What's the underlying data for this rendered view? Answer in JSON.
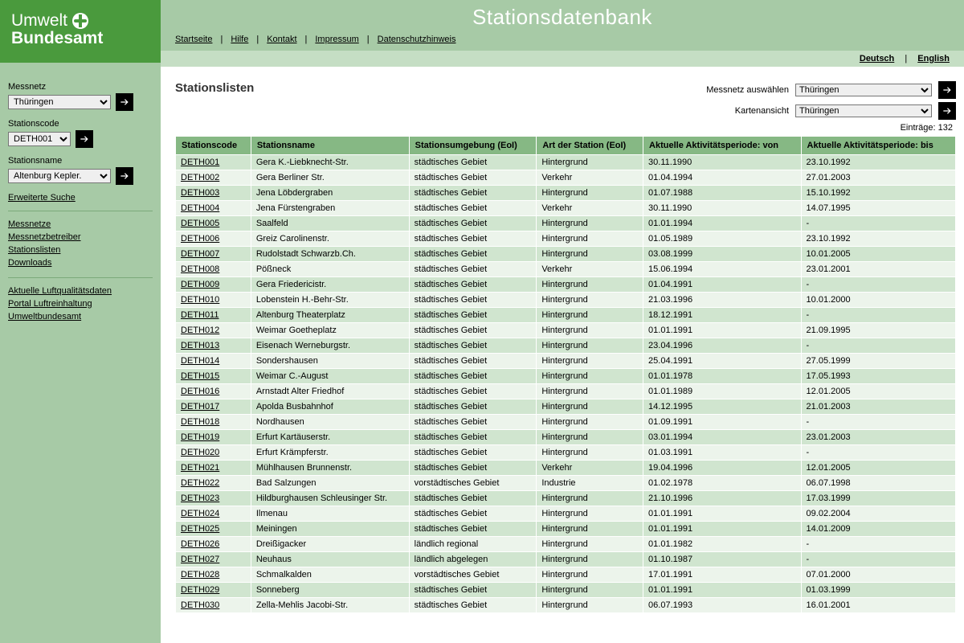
{
  "logo": {
    "line1": "Umwelt",
    "line2": "Bundesamt"
  },
  "page_title": "Stationsdatenbank",
  "topnav": [
    "Startseite",
    "Hilfe",
    "Kontakt",
    "Impressum",
    "Datenschutzhinweis"
  ],
  "lang": {
    "de": "Deutsch",
    "en": "English"
  },
  "sidebar": {
    "messnetz_label": "Messnetz",
    "messnetz_value": "Thüringen",
    "stationscode_label": "Stationscode",
    "stationscode_value": "DETH001",
    "stationsname_label": "Stationsname",
    "stationsname_value": "Altenburg Kepler.",
    "erw_suche": "Erweiterte Suche",
    "links_a": [
      "Messnetze",
      "Messnetzbetreiber",
      "Stationslisten",
      "Downloads"
    ],
    "links_b": [
      "Aktuelle Luftqualitätsdaten",
      "Portal Luftreinhaltung",
      "Umweltbundesamt"
    ]
  },
  "content": {
    "heading": "Stationslisten",
    "filter_messnetz_label": "Messnetz auswählen",
    "filter_karten_label": "Kartenansicht",
    "filter_value": "Thüringen",
    "entries_label": "Einträge: 132"
  },
  "columns": [
    "Stationscode",
    "Stationsname",
    "Stationsumgebung (EoI)",
    "Art der Station (EoI)",
    "Aktuelle Aktivitätsperiode: von",
    "Aktuelle Aktivitätsperiode: bis"
  ],
  "rows": [
    [
      "DETH001",
      "Gera K.-Liebknecht-Str.",
      "städtisches Gebiet",
      "Hintergrund",
      "30.11.1990",
      "23.10.1992"
    ],
    [
      "DETH002",
      "Gera Berliner Str.",
      "städtisches Gebiet",
      "Verkehr",
      "01.04.1994",
      "27.01.2003"
    ],
    [
      "DETH003",
      "Jena Löbdergraben",
      "städtisches Gebiet",
      "Hintergrund",
      "01.07.1988",
      "15.10.1992"
    ],
    [
      "DETH004",
      "Jena Fürstengraben",
      "städtisches Gebiet",
      "Verkehr",
      "30.11.1990",
      "14.07.1995"
    ],
    [
      "DETH005",
      "Saalfeld",
      "städtisches Gebiet",
      "Hintergrund",
      "01.01.1994",
      "-"
    ],
    [
      "DETH006",
      "Greiz Carolinenstr.",
      "städtisches Gebiet",
      "Hintergrund",
      "01.05.1989",
      "23.10.1992"
    ],
    [
      "DETH007",
      "Rudolstadt Schwarzb.Ch.",
      "städtisches Gebiet",
      "Hintergrund",
      "03.08.1999",
      "10.01.2005"
    ],
    [
      "DETH008",
      "Pößneck",
      "städtisches Gebiet",
      "Verkehr",
      "15.06.1994",
      "23.01.2001"
    ],
    [
      "DETH009",
      "Gera Friedericistr.",
      "städtisches Gebiet",
      "Hintergrund",
      "01.04.1991",
      "-"
    ],
    [
      "DETH010",
      "Lobenstein H.-Behr-Str.",
      "städtisches Gebiet",
      "Hintergrund",
      "21.03.1996",
      "10.01.2000"
    ],
    [
      "DETH011",
      "Altenburg Theaterplatz",
      "städtisches Gebiet",
      "Hintergrund",
      "18.12.1991",
      "-"
    ],
    [
      "DETH012",
      "Weimar Goetheplatz",
      "städtisches Gebiet",
      "Hintergrund",
      "01.01.1991",
      "21.09.1995"
    ],
    [
      "DETH013",
      "Eisenach Werneburgstr.",
      "städtisches Gebiet",
      "Hintergrund",
      "23.04.1996",
      "-"
    ],
    [
      "DETH014",
      "Sondershausen",
      "städtisches Gebiet",
      "Hintergrund",
      "25.04.1991",
      "27.05.1999"
    ],
    [
      "DETH015",
      "Weimar C.-August",
      "städtisches Gebiet",
      "Hintergrund",
      "01.01.1978",
      "17.05.1993"
    ],
    [
      "DETH016",
      "Arnstadt Alter Friedhof",
      "städtisches Gebiet",
      "Hintergrund",
      "01.01.1989",
      "12.01.2005"
    ],
    [
      "DETH017",
      "Apolda Busbahnhof",
      "städtisches Gebiet",
      "Hintergrund",
      "14.12.1995",
      "21.01.2003"
    ],
    [
      "DETH018",
      "Nordhausen",
      "städtisches Gebiet",
      "Hintergrund",
      "01.09.1991",
      "-"
    ],
    [
      "DETH019",
      "Erfurt Kartäuserstr.",
      "städtisches Gebiet",
      "Hintergrund",
      "03.01.1994",
      "23.01.2003"
    ],
    [
      "DETH020",
      "Erfurt Krämpferstr.",
      "städtisches Gebiet",
      "Hintergrund",
      "01.03.1991",
      "-"
    ],
    [
      "DETH021",
      "Mühlhausen Brunnenstr.",
      "städtisches Gebiet",
      "Verkehr",
      "19.04.1996",
      "12.01.2005"
    ],
    [
      "DETH022",
      "Bad Salzungen",
      "vorstädtisches Gebiet",
      "Industrie",
      "01.02.1978",
      "06.07.1998"
    ],
    [
      "DETH023",
      "Hildburghausen Schleusinger Str.",
      "städtisches Gebiet",
      "Hintergrund",
      "21.10.1996",
      "17.03.1999"
    ],
    [
      "DETH024",
      "Ilmenau",
      "städtisches Gebiet",
      "Hintergrund",
      "01.01.1991",
      "09.02.2004"
    ],
    [
      "DETH025",
      "Meiningen",
      "städtisches Gebiet",
      "Hintergrund",
      "01.01.1991",
      "14.01.2009"
    ],
    [
      "DETH026",
      "Dreißigacker",
      "ländlich regional",
      "Hintergrund",
      "01.01.1982",
      "-"
    ],
    [
      "DETH027",
      "Neuhaus",
      "ländlich abgelegen",
      "Hintergrund",
      "01.10.1987",
      "-"
    ],
    [
      "DETH028",
      "Schmalkalden",
      "vorstädtisches Gebiet",
      "Hintergrund",
      "17.01.1991",
      "07.01.2000"
    ],
    [
      "DETH029",
      "Sonneberg",
      "städtisches Gebiet",
      "Hintergrund",
      "01.01.1991",
      "01.03.1999"
    ],
    [
      "DETH030",
      "Zella-Mehlis Jacobi-Str.",
      "städtisches Gebiet",
      "Hintergrund",
      "06.07.1993",
      "16.01.2001"
    ]
  ]
}
